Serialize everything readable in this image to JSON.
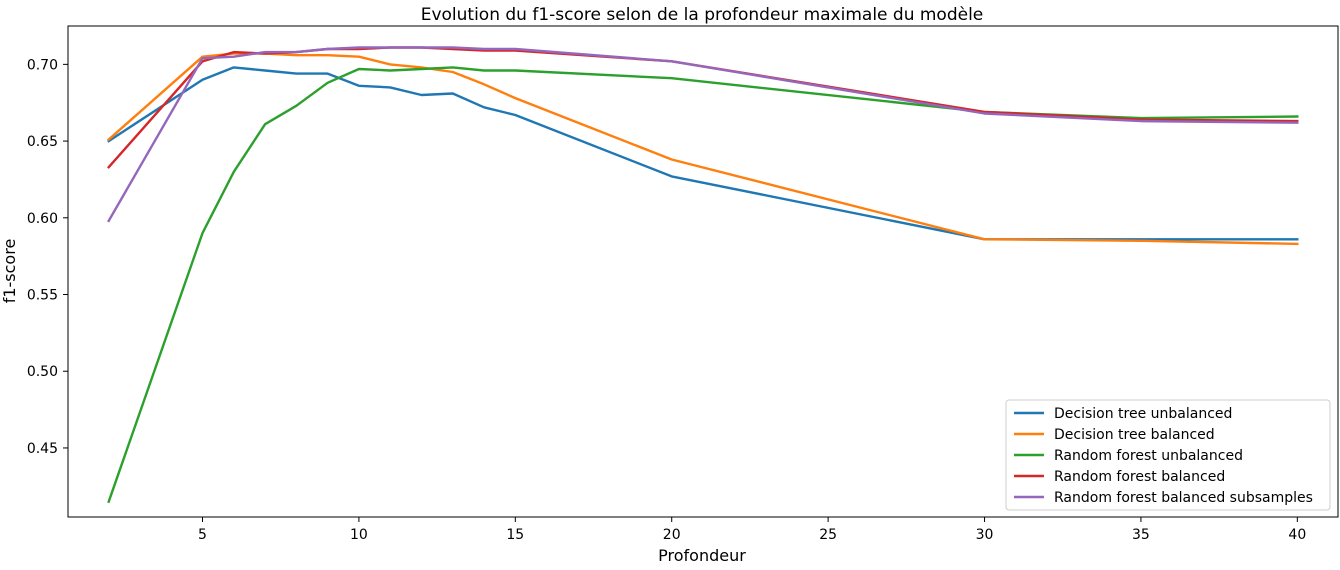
{
  "chart_data": {
    "type": "line",
    "title": "Evolution du f1-score selon de la profondeur maximale du modèle",
    "xlabel": "Profondeur",
    "ylabel": "f1-score",
    "xlim": [
      0.7,
      41.3
    ],
    "ylim": [
      0.405,
      0.725
    ],
    "xticks": [
      5,
      10,
      15,
      20,
      25,
      30,
      35,
      40
    ],
    "yticks": [
      0.45,
      0.5,
      0.55,
      0.6,
      0.65,
      0.7
    ],
    "xtick_labels": [
      "5",
      "10",
      "15",
      "20",
      "25",
      "30",
      "35",
      "40"
    ],
    "ytick_labels": [
      "0.45",
      "0.50",
      "0.55",
      "0.60",
      "0.65",
      "0.70"
    ],
    "grid": false,
    "legend_position": "lower-right",
    "x": [
      2,
      5,
      6,
      7,
      8,
      9,
      10,
      11,
      12,
      13,
      14,
      15,
      20,
      30,
      35,
      40
    ],
    "series": [
      {
        "name": "Decision tree unbalanced",
        "color": "#1f77b4",
        "values": [
          0.65,
          0.69,
          0.698,
          0.696,
          0.694,
          0.694,
          0.686,
          0.685,
          0.68,
          0.681,
          0.672,
          0.667,
          0.627,
          0.586,
          0.586,
          0.586
        ]
      },
      {
        "name": "Decision tree balanced",
        "color": "#ff7f0e",
        "values": [
          0.651,
          0.705,
          0.707,
          0.707,
          0.706,
          0.706,
          0.705,
          0.7,
          0.698,
          0.695,
          0.687,
          0.678,
          0.638,
          0.586,
          0.585,
          0.583
        ]
      },
      {
        "name": "Random forest unbalanced",
        "color": "#2ca02c",
        "values": [
          0.415,
          0.59,
          0.63,
          0.661,
          0.673,
          0.688,
          0.697,
          0.696,
          0.697,
          0.698,
          0.696,
          0.696,
          0.691,
          0.669,
          0.665,
          0.666
        ]
      },
      {
        "name": "Random forest balanced",
        "color": "#d62728",
        "values": [
          0.633,
          0.702,
          0.708,
          0.707,
          0.708,
          0.71,
          0.71,
          0.711,
          0.711,
          0.71,
          0.709,
          0.709,
          0.702,
          0.669,
          0.664,
          0.663
        ]
      },
      {
        "name": "Random forest balanced subsamples",
        "color": "#9467bd",
        "values": [
          0.598,
          0.704,
          0.705,
          0.708,
          0.708,
          0.71,
          0.711,
          0.711,
          0.711,
          0.711,
          0.71,
          0.71,
          0.702,
          0.668,
          0.663,
          0.662
        ]
      }
    ]
  }
}
